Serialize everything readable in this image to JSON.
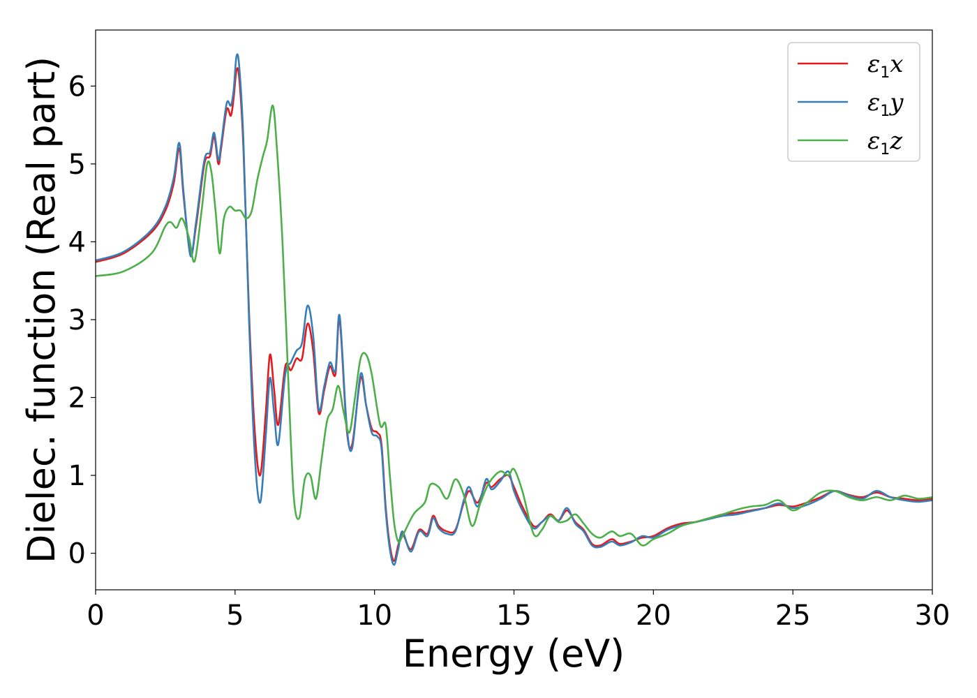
{
  "chart_data": {
    "type": "line",
    "xlabel": "Energy (eV)",
    "ylabel": "Dielec. function (Real part)",
    "xlim": [
      0,
      30
    ],
    "ylim": [
      -0.47,
      6.72
    ],
    "xticks": [
      "0",
      "5",
      "10",
      "15",
      "20",
      "25",
      "30"
    ],
    "yticks": [
      "0",
      "1",
      "2",
      "3",
      "4",
      "5",
      "6"
    ],
    "grid": false,
    "legend_position": "top-right",
    "series": [
      {
        "name": "ε1x",
        "legend": {
          "base": "ε",
          "sub": "1",
          "var": "x"
        },
        "color": "#e41a1c",
        "x": [
          0,
          1,
          2,
          2.5,
          2.8,
          3.0,
          3.15,
          3.4,
          3.6,
          3.9,
          4.1,
          4.25,
          4.4,
          4.5,
          4.7,
          4.85,
          4.95,
          5.05,
          5.15,
          5.3,
          5.5,
          5.7,
          5.9,
          6.1,
          6.25,
          6.4,
          6.55,
          6.8,
          7.0,
          7.2,
          7.4,
          7.6,
          7.8,
          8.0,
          8.2,
          8.4,
          8.6,
          8.75,
          9.0,
          9.2,
          9.5,
          9.7,
          9.9,
          10.1,
          10.25,
          10.4,
          10.55,
          10.7,
          10.85,
          11.0,
          11.3,
          11.6,
          11.9,
          12.1,
          12.3,
          12.6,
          12.9,
          13.2,
          13.4,
          13.7,
          14.0,
          14.2,
          14.5,
          14.8,
          15.0,
          15.3,
          15.7,
          16.0,
          16.3,
          16.6,
          16.9,
          17.2,
          17.5,
          17.8,
          18.1,
          18.5,
          18.8,
          19.2,
          19.6,
          20.0,
          20.5,
          21.0,
          21.5,
          22.0,
          22.5,
          23.0,
          23.5,
          24.0,
          24.5,
          25.0,
          25.5,
          26.0,
          26.5,
          27.0,
          27.5,
          28.0,
          28.5,
          29.0,
          29.5,
          30.0
        ],
        "values": [
          3.74,
          3.85,
          4.12,
          4.4,
          4.75,
          5.2,
          4.6,
          3.85,
          4.2,
          5.0,
          5.1,
          5.35,
          5.0,
          5.2,
          5.7,
          5.62,
          5.85,
          6.2,
          6.1,
          5.2,
          3.1,
          1.6,
          1.0,
          1.8,
          2.55,
          2.1,
          1.65,
          2.4,
          2.35,
          2.5,
          2.5,
          2.95,
          2.6,
          1.8,
          2.1,
          2.4,
          2.3,
          3.0,
          1.6,
          1.4,
          2.25,
          1.9,
          1.6,
          1.55,
          1.4,
          0.6,
          0.1,
          -0.1,
          0.1,
          0.25,
          0.05,
          0.3,
          0.25,
          0.48,
          0.35,
          0.28,
          0.3,
          0.65,
          0.8,
          0.65,
          0.9,
          0.85,
          0.95,
          1.0,
          0.85,
          0.6,
          0.35,
          0.4,
          0.5,
          0.42,
          0.55,
          0.4,
          0.3,
          0.12,
          0.1,
          0.18,
          0.12,
          0.15,
          0.2,
          0.22,
          0.32,
          0.38,
          0.4,
          0.45,
          0.5,
          0.52,
          0.55,
          0.58,
          0.62,
          0.6,
          0.65,
          0.72,
          0.8,
          0.75,
          0.72,
          0.78,
          0.72,
          0.7,
          0.68,
          0.7
        ]
      },
      {
        "name": "ε1y",
        "legend": {
          "base": "ε",
          "sub": "1",
          "var": "y"
        },
        "color": "#377eb8",
        "x": [
          0,
          1,
          2,
          2.5,
          2.8,
          3.0,
          3.15,
          3.4,
          3.6,
          3.9,
          4.1,
          4.25,
          4.4,
          4.5,
          4.7,
          4.85,
          4.95,
          5.05,
          5.15,
          5.3,
          5.5,
          5.7,
          5.9,
          6.1,
          6.25,
          6.4,
          6.55,
          6.8,
          7.0,
          7.2,
          7.4,
          7.6,
          7.8,
          8.0,
          8.2,
          8.4,
          8.6,
          8.75,
          9.0,
          9.2,
          9.5,
          9.7,
          9.9,
          10.1,
          10.25,
          10.4,
          10.55,
          10.7,
          10.85,
          11.0,
          11.3,
          11.6,
          11.9,
          12.1,
          12.3,
          12.6,
          12.9,
          13.2,
          13.4,
          13.7,
          14.0,
          14.2,
          14.5,
          14.8,
          15.0,
          15.3,
          15.7,
          16.0,
          16.3,
          16.6,
          16.9,
          17.2,
          17.5,
          17.8,
          18.1,
          18.5,
          18.8,
          19.2,
          19.6,
          20.0,
          20.5,
          21.0,
          21.5,
          22.0,
          22.5,
          23.0,
          23.5,
          24.0,
          24.5,
          25.0,
          25.5,
          26.0,
          26.5,
          27.0,
          27.5,
          28.0,
          28.5,
          29.0,
          29.5,
          30.0
        ],
        "values": [
          3.76,
          3.87,
          4.15,
          4.45,
          4.82,
          5.27,
          4.65,
          3.82,
          4.25,
          5.05,
          5.15,
          5.4,
          5.05,
          5.25,
          5.78,
          5.75,
          5.95,
          6.38,
          6.25,
          5.3,
          3.0,
          1.3,
          0.65,
          1.5,
          2.25,
          1.8,
          1.4,
          2.3,
          2.45,
          2.6,
          2.7,
          3.18,
          2.8,
          1.85,
          2.15,
          2.45,
          2.35,
          3.05,
          1.65,
          1.35,
          2.3,
          1.9,
          1.55,
          1.5,
          1.35,
          0.55,
          0.05,
          -0.15,
          0.05,
          0.28,
          0.02,
          0.28,
          0.22,
          0.45,
          0.32,
          0.25,
          0.28,
          0.68,
          0.85,
          0.6,
          0.95,
          0.82,
          0.92,
          1.05,
          0.8,
          0.55,
          0.32,
          0.4,
          0.48,
          0.42,
          0.58,
          0.38,
          0.28,
          0.1,
          0.08,
          0.15,
          0.1,
          0.14,
          0.22,
          0.2,
          0.3,
          0.36,
          0.4,
          0.44,
          0.48,
          0.5,
          0.54,
          0.58,
          0.64,
          0.58,
          0.62,
          0.7,
          0.8,
          0.74,
          0.7,
          0.8,
          0.72,
          0.68,
          0.66,
          0.68
        ]
      },
      {
        "name": "ε1z",
        "legend": {
          "base": "ε",
          "sub": "1",
          "var": "z"
        },
        "color": "#4daf4a",
        "x": [
          0,
          1,
          2,
          2.5,
          2.7,
          2.9,
          3.1,
          3.35,
          3.55,
          3.8,
          4.0,
          4.15,
          4.3,
          4.45,
          4.6,
          4.8,
          5.0,
          5.2,
          5.4,
          5.6,
          5.8,
          6.0,
          6.15,
          6.35,
          6.5,
          6.7,
          6.9,
          7.1,
          7.3,
          7.5,
          7.7,
          7.9,
          8.1,
          8.3,
          8.5,
          8.7,
          8.9,
          9.1,
          9.3,
          9.5,
          9.7,
          9.9,
          10.2,
          10.4,
          10.55,
          10.7,
          10.85,
          11.0,
          11.4,
          11.8,
          12.0,
          12.3,
          12.6,
          12.9,
          13.2,
          13.5,
          13.8,
          14.1,
          14.5,
          14.8,
          15.0,
          15.3,
          15.7,
          16.0,
          16.3,
          16.6,
          16.9,
          17.2,
          17.5,
          17.8,
          18.1,
          18.5,
          18.8,
          19.2,
          19.6,
          20.0,
          20.5,
          21.0,
          21.5,
          22.0,
          22.5,
          23.0,
          23.5,
          24.0,
          24.5,
          25.0,
          25.5,
          26.0,
          26.5,
          27.0,
          27.5,
          28.0,
          28.5,
          29.0,
          29.5,
          30.0
        ],
        "values": [
          3.56,
          3.62,
          3.85,
          4.2,
          4.25,
          4.18,
          4.3,
          4.05,
          3.75,
          4.4,
          5.0,
          4.9,
          4.4,
          3.85,
          4.3,
          4.45,
          4.4,
          4.4,
          4.3,
          4.4,
          4.8,
          5.1,
          5.3,
          5.75,
          5.2,
          4.0,
          2.3,
          0.75,
          0.45,
          0.95,
          1.0,
          0.7,
          1.2,
          1.7,
          1.85,
          2.15,
          1.8,
          1.55,
          2.0,
          2.5,
          2.55,
          2.3,
          1.65,
          1.65,
          1.0,
          0.4,
          0.15,
          0.22,
          0.5,
          0.65,
          0.88,
          0.85,
          0.7,
          0.95,
          0.75,
          0.35,
          0.65,
          0.9,
          1.05,
          1.0,
          1.08,
          0.8,
          0.25,
          0.3,
          0.48,
          0.4,
          0.42,
          0.5,
          0.38,
          0.25,
          0.2,
          0.28,
          0.22,
          0.25,
          0.1,
          0.18,
          0.25,
          0.35,
          0.4,
          0.45,
          0.5,
          0.56,
          0.6,
          0.62,
          0.68,
          0.55,
          0.65,
          0.78,
          0.8,
          0.72,
          0.68,
          0.72,
          0.68,
          0.74,
          0.7,
          0.72
        ]
      }
    ]
  }
}
